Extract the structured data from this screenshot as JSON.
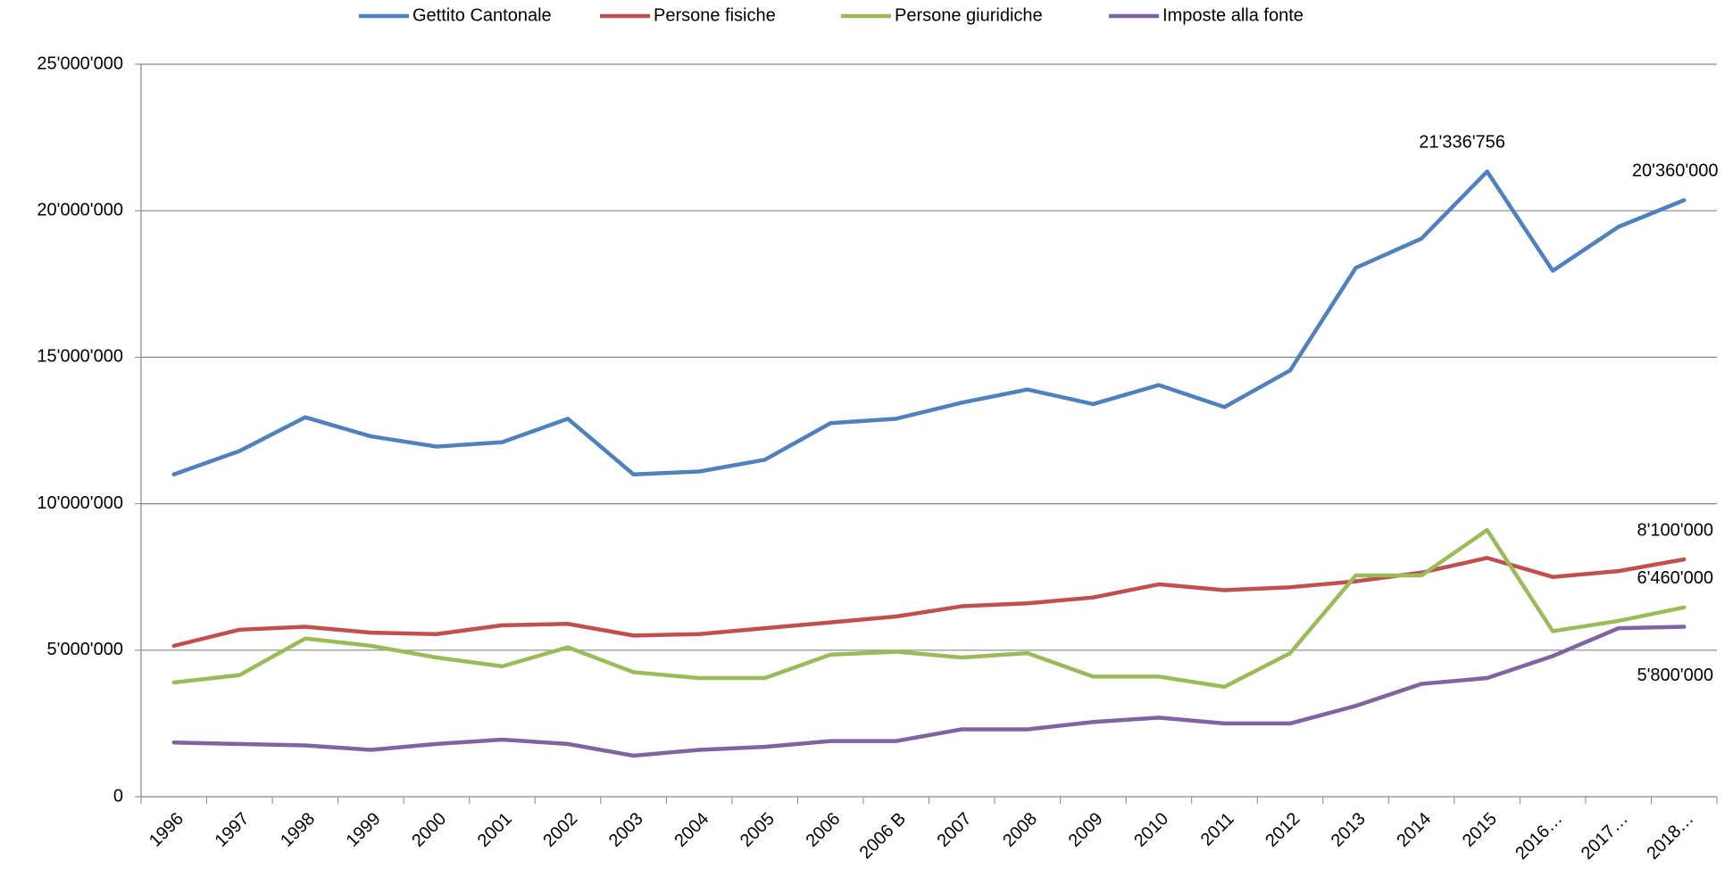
{
  "chart_data": {
    "type": "line",
    "categories": [
      "1996",
      "1997",
      "1998",
      "1999",
      "2000",
      "2001",
      "2002",
      "2003",
      "2004",
      "2005",
      "2006",
      "2006 B",
      "2007",
      "2008",
      "2009",
      "2010",
      "2011",
      "2012",
      "2013",
      "2014",
      "2015",
      "2016…",
      "2017…",
      "2018…"
    ],
    "series": [
      {
        "name": "Gettito Cantonale",
        "color": "#4f81bd",
        "values": [
          11000000,
          11800000,
          12950000,
          12300000,
          11950000,
          12100000,
          12900000,
          11000000,
          11100000,
          11500000,
          12750000,
          12900000,
          13450000,
          13900000,
          13400000,
          14050000,
          13300000,
          14550000,
          18050000,
          19050000,
          21336756,
          17950000,
          19450000,
          20360000
        ],
        "value_labels": [
          null,
          null,
          null,
          null,
          null,
          null,
          null,
          null,
          null,
          null,
          null,
          null,
          null,
          null,
          null,
          null,
          null,
          null,
          null,
          null,
          "21'336'756",
          null,
          null,
          "20'360'000"
        ]
      },
      {
        "name": "Persone fisiche",
        "color": "#c0504d",
        "values": [
          5150000,
          5700000,
          5800000,
          5600000,
          5550000,
          5850000,
          5900000,
          5500000,
          5550000,
          5750000,
          5950000,
          6150000,
          6500000,
          6600000,
          6800000,
          7250000,
          7050000,
          7150000,
          7350000,
          7650000,
          8150000,
          7500000,
          7700000,
          8100000
        ],
        "value_labels": [
          null,
          null,
          null,
          null,
          null,
          null,
          null,
          null,
          null,
          null,
          null,
          null,
          null,
          null,
          null,
          null,
          null,
          null,
          null,
          null,
          null,
          null,
          null,
          "8'100'000"
        ]
      },
      {
        "name": "Persone giuridiche",
        "color": "#9bbb59",
        "values": [
          3900000,
          4150000,
          5400000,
          5150000,
          4750000,
          4450000,
          5100000,
          4250000,
          4050000,
          4050000,
          4850000,
          4950000,
          4750000,
          4900000,
          4100000,
          4100000,
          3750000,
          4900000,
          7550000,
          7550000,
          9100000,
          5650000,
          6000000,
          6460000
        ],
        "value_labels": [
          null,
          null,
          null,
          null,
          null,
          null,
          null,
          null,
          null,
          null,
          null,
          null,
          null,
          null,
          null,
          null,
          null,
          null,
          null,
          null,
          null,
          null,
          null,
          "6'460'000"
        ]
      },
      {
        "name": "Imposte alla fonte",
        "color": "#8064a2",
        "values": [
          1850000,
          1800000,
          1750000,
          1600000,
          1800000,
          1950000,
          1800000,
          1400000,
          1600000,
          1700000,
          1900000,
          1900000,
          2300000,
          2300000,
          2550000,
          2700000,
          2500000,
          2500000,
          3100000,
          3850000,
          4050000,
          4800000,
          5750000,
          5800000
        ],
        "value_labels": [
          null,
          null,
          null,
          null,
          null,
          null,
          null,
          null,
          null,
          null,
          null,
          null,
          null,
          null,
          null,
          null,
          null,
          null,
          null,
          null,
          null,
          null,
          null,
          "5'800'000"
        ]
      }
    ],
    "ylim": [
      0,
      25000000
    ],
    "yticks": [
      0,
      {
        "value": 5000000,
        "label": "5'000'000"
      },
      {
        "value": 10000000,
        "label": "10'000'000"
      },
      {
        "value": 15000000,
        "label": "15'000'000"
      },
      {
        "value": 20000000,
        "label": "20'000'000"
      },
      {
        "value": 25000000,
        "label": "25'000'000"
      }
    ],
    "grid": true,
    "legend": "top"
  }
}
